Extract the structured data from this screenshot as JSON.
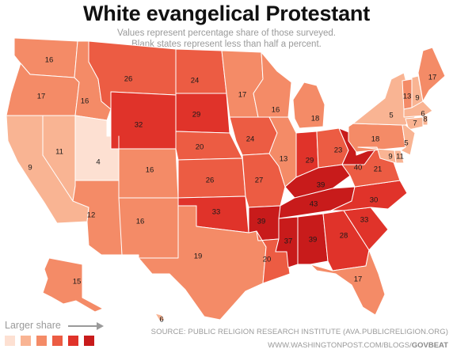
{
  "title": "White evangelical Protestant",
  "subtitle_line1": "Values represent percentage share of those surveyed.",
  "subtitle_line2": "Blank states represent less than half a percent.",
  "legend": {
    "label": "Larger share",
    "colors": [
      "#fde0d2",
      "#f9b493",
      "#f48b67",
      "#ec5c43",
      "#e0332a",
      "#c81b1b"
    ]
  },
  "source": "SOURCE: PUBLIC RELIGION RESEARCH INSTITUTE (AVA.PUBLICRELIGION.ORG)",
  "url_prefix": "WWW.WASHINGTONPOST.COM/BLOGS/",
  "url_suffix": "GOVBEAT",
  "states": [
    {
      "abbr": "WA",
      "value": 16
    },
    {
      "abbr": "OR",
      "value": 17
    },
    {
      "abbr": "CA",
      "value": 9
    },
    {
      "abbr": "NV",
      "value": 11
    },
    {
      "abbr": "ID",
      "value": 16
    },
    {
      "abbr": "UT",
      "value": 4
    },
    {
      "abbr": "AZ",
      "value": 12
    },
    {
      "abbr": "MT",
      "value": 26
    },
    {
      "abbr": "WY",
      "value": 32
    },
    {
      "abbr": "CO",
      "value": 16
    },
    {
      "abbr": "NM",
      "value": 16
    },
    {
      "abbr": "ND",
      "value": 24
    },
    {
      "abbr": "SD",
      "value": 29
    },
    {
      "abbr": "NE",
      "value": 20
    },
    {
      "abbr": "KS",
      "value": 26
    },
    {
      "abbr": "OK",
      "value": 33
    },
    {
      "abbr": "TX",
      "value": 19
    },
    {
      "abbr": "MN",
      "value": 17
    },
    {
      "abbr": "IA",
      "value": 24
    },
    {
      "abbr": "MO",
      "value": 27
    },
    {
      "abbr": "AR",
      "value": 39
    },
    {
      "abbr": "LA",
      "value": 20
    },
    {
      "abbr": "WI",
      "value": 16
    },
    {
      "abbr": "IL",
      "value": 13
    },
    {
      "abbr": "MI",
      "value": 18
    },
    {
      "abbr": "IN",
      "value": 29
    },
    {
      "abbr": "OH",
      "value": 23
    },
    {
      "abbr": "KY",
      "value": 39
    },
    {
      "abbr": "TN",
      "value": 43
    },
    {
      "abbr": "MS",
      "value": 37
    },
    {
      "abbr": "AL",
      "value": 39
    },
    {
      "abbr": "GA",
      "value": 28
    },
    {
      "abbr": "FL",
      "value": 17
    },
    {
      "abbr": "SC",
      "value": 33
    },
    {
      "abbr": "NC",
      "value": 30
    },
    {
      "abbr": "VA",
      "value": 21
    },
    {
      "abbr": "WV",
      "value": 40
    },
    {
      "abbr": "PA",
      "value": 18
    },
    {
      "abbr": "NY",
      "value": 5
    },
    {
      "abbr": "VT",
      "value": 13
    },
    {
      "abbr": "NH",
      "value": 9
    },
    {
      "abbr": "ME",
      "value": 17
    },
    {
      "abbr": "MA",
      "value": 6
    },
    {
      "abbr": "RI",
      "value": 8
    },
    {
      "abbr": "CT",
      "value": 7
    },
    {
      "abbr": "NJ",
      "value": 5
    },
    {
      "abbr": "DE",
      "value": 11
    },
    {
      "abbr": "MD",
      "value": 9
    },
    {
      "abbr": "AK",
      "value": 15
    },
    {
      "abbr": "HI",
      "value": 6
    }
  ]
}
